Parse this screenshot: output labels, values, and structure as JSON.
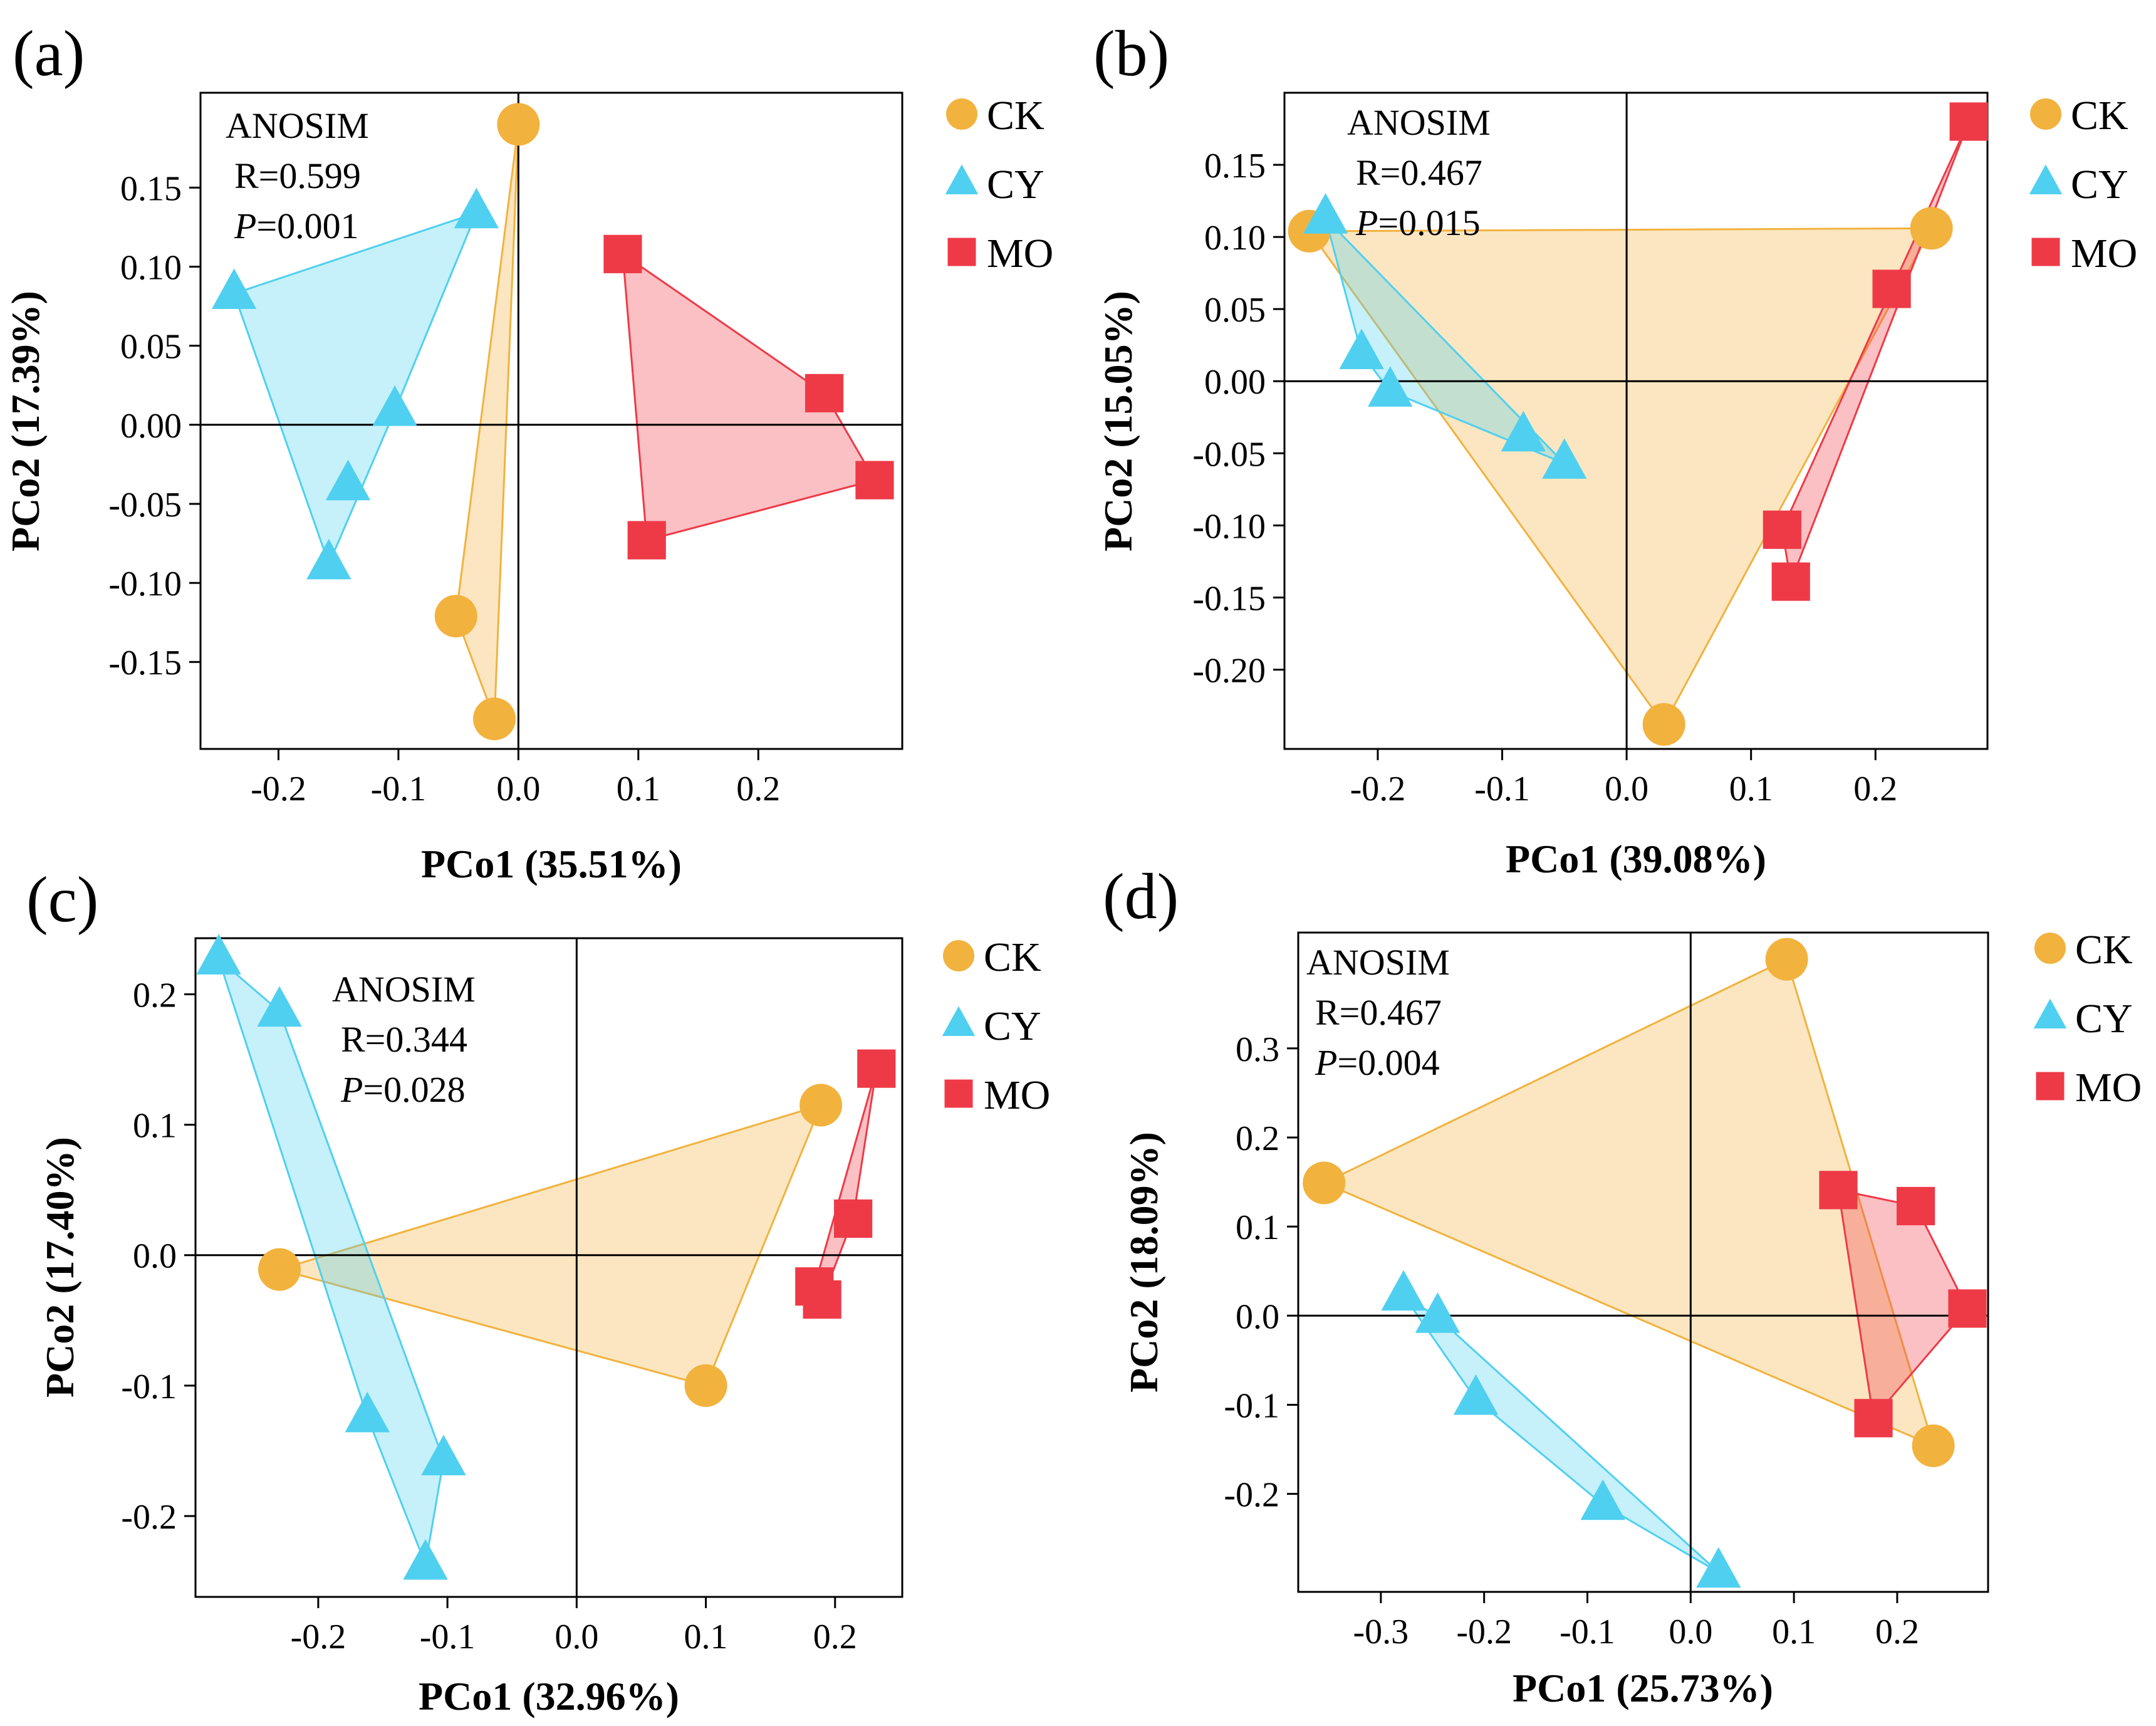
{
  "figure": {
    "panels": [
      "a",
      "b",
      "c",
      "d"
    ]
  },
  "colors": {
    "CK": "#F2B23E",
    "CY": "#4FD0F0",
    "MO": "#EE3A47",
    "CK_fill": "#F4D9A6",
    "CY_fill": "#BDEEF8",
    "MO_fill": "#F7BCC0"
  },
  "chart_data": [
    {
      "panel_label": "(a)",
      "type": "scatter",
      "xlabel": "PCo1 (35.51%)",
      "ylabel": "PCo2 (17.39%)",
      "xlim": [
        -0.265,
        0.32
      ],
      "ylim": [
        -0.205,
        0.21
      ],
      "xticks": [
        -0.2,
        -0.1,
        0.0,
        0.1,
        0.2
      ],
      "xtick_labels": [
        "-0.2",
        "-0.1",
        "0.0",
        "0.1",
        "0.2"
      ],
      "yticks": [
        -0.15,
        -0.1,
        -0.05,
        0.0,
        0.05,
        0.1,
        0.15
      ],
      "ytick_labels": [
        "-0.15",
        "-0.10",
        "-0.05",
        "0.00",
        "0.05",
        "0.10",
        "0.15"
      ],
      "annotation": {
        "test": "ANOSIM",
        "r": "R=0.599",
        "p_symbol": "P",
        "p_value": "=0.001",
        "position": "top-left"
      },
      "legend": [
        "CK",
        "CY",
        "MO"
      ],
      "series": [
        {
          "name": "CK",
          "marker": "circle",
          "x": [
            0.0,
            -0.052,
            -0.02
          ],
          "y": [
            0.19,
            -0.121,
            -0.186
          ]
        },
        {
          "name": "CY",
          "marker": "triangle",
          "x": [
            -0.237,
            -0.035,
            -0.103,
            -0.142,
            -0.158
          ],
          "y": [
            0.083,
            0.134,
            0.009,
            -0.038,
            -0.088
          ]
        },
        {
          "name": "MO",
          "marker": "square",
          "x": [
            0.087,
            0.255,
            0.297,
            0.107
          ],
          "y": [
            0.108,
            0.02,
            -0.035,
            -0.073
          ]
        }
      ]
    },
    {
      "panel_label": "(b)",
      "type": "scatter",
      "xlabel": "PCo1 (39.08%)",
      "ylabel": "PCo2 (15.05%)",
      "xlim": [
        -0.275,
        0.29
      ],
      "ylim": [
        -0.255,
        0.2
      ],
      "xticks": [
        -0.2,
        -0.1,
        0.0,
        0.1,
        0.2
      ],
      "xtick_labels": [
        "-0.2",
        "-0.1",
        "0.0",
        "0.1",
        "0.2"
      ],
      "yticks": [
        -0.2,
        -0.15,
        -0.1,
        -0.05,
        0.0,
        0.05,
        0.1,
        0.15
      ],
      "ytick_labels": [
        "-0.20",
        "-0.15",
        "-0.10",
        "-0.05",
        "0.00",
        "0.05",
        "0.10",
        "0.15"
      ],
      "annotation": {
        "test": "ANOSIM",
        "r": "R=0.467",
        "p_symbol": "P",
        "p_value": "=0.015",
        "position": "top-center"
      },
      "legend": [
        "CK",
        "CY",
        "MO"
      ],
      "series": [
        {
          "name": "CK",
          "marker": "circle",
          "x": [
            -0.255,
            0.245,
            0.03
          ],
          "y": [
            0.104,
            0.106,
            -0.238
          ]
        },
        {
          "name": "CY",
          "marker": "triangle",
          "x": [
            -0.242,
            -0.213,
            -0.19,
            -0.083,
            -0.05
          ],
          "y": [
            0.113,
            0.019,
            -0.007,
            -0.038,
            -0.057
          ]
        },
        {
          "name": "MO",
          "marker": "square",
          "x": [
            0.275,
            0.213,
            0.125,
            0.132
          ],
          "y": [
            0.18,
            0.064,
            -0.103,
            -0.139
          ]
        }
      ]
    },
    {
      "panel_label": "(c)",
      "type": "scatter",
      "xlabel": "PCo1 (32.96%)",
      "ylabel": "PCo2 (17.40%)",
      "xlim": [
        -0.295,
        0.252
      ],
      "ylim": [
        -0.262,
        0.243
      ],
      "xticks": [
        -0.2,
        -0.1,
        0.0,
        0.1,
        0.2
      ],
      "xtick_labels": [
        "-0.2",
        "-0.1",
        "0.0",
        "0.1",
        "0.2"
      ],
      "yticks": [
        -0.2,
        -0.1,
        0.0,
        0.1,
        0.2
      ],
      "ytick_labels": [
        "-0.2",
        "-0.1",
        "0.0",
        "0.1",
        "0.2"
      ],
      "annotation": {
        "test": "ANOSIM",
        "r": "R=0.344",
        "p_symbol": "P",
        "p_value": "=0.028",
        "position": "top-center"
      },
      "legend": [
        "CK",
        "CY",
        "MO"
      ],
      "series": [
        {
          "name": "CK",
          "marker": "circle",
          "x": [
            -0.23,
            0.189,
            0.1
          ],
          "y": [
            -0.011,
            0.115,
            -0.1
          ]
        },
        {
          "name": "CY",
          "marker": "triangle",
          "x": [
            -0.277,
            -0.23,
            -0.162,
            -0.103,
            -0.117
          ],
          "y": [
            0.227,
            0.187,
            -0.124,
            -0.157,
            -0.237
          ]
        },
        {
          "name": "MO",
          "marker": "square",
          "x": [
            0.232,
            0.214,
            0.184,
            0.19
          ],
          "y": [
            0.143,
            0.028,
            -0.024,
            -0.034
          ]
        }
      ]
    },
    {
      "panel_label": "(d)",
      "type": "scatter",
      "xlabel": "PCo1 (25.73%)",
      "ylabel": "PCo2 (18.09%)",
      "xlim": [
        -0.38,
        0.288
      ],
      "ylim": [
        -0.31,
        0.43
      ],
      "xticks": [
        -0.3,
        -0.2,
        -0.1,
        0.0,
        0.1,
        0.2
      ],
      "xtick_labels": [
        "-0.3",
        "-0.2",
        "-0.1",
        "0.0",
        "0.1",
        "0.2"
      ],
      "yticks": [
        -0.2,
        -0.1,
        0.0,
        0.1,
        0.2,
        0.3
      ],
      "ytick_labels": [
        "-0.2",
        "-0.1",
        "0.0",
        "0.1",
        "0.2",
        "0.3"
      ],
      "annotation": {
        "test": "ANOSIM",
        "r": "R=0.467",
        "p_symbol": "P",
        "p_value": "=0.004",
        "position": "top-left"
      },
      "legend": [
        "CK",
        "CY",
        "MO"
      ],
      "series": [
        {
          "name": "CK",
          "marker": "circle",
          "x": [
            0.093,
            -0.355,
            0.235
          ],
          "y": [
            0.4,
            0.149,
            -0.146
          ]
        },
        {
          "name": "CY",
          "marker": "triangle",
          "x": [
            -0.278,
            -0.245,
            -0.208,
            -0.085,
            0.027
          ],
          "y": [
            0.023,
            -0.002,
            -0.094,
            -0.212,
            -0.288
          ]
        },
        {
          "name": "MO",
          "marker": "square",
          "x": [
            0.143,
            0.218,
            0.268,
            0.177
          ],
          "y": [
            0.141,
            0.123,
            0.008,
            -0.115
          ]
        }
      ]
    }
  ]
}
